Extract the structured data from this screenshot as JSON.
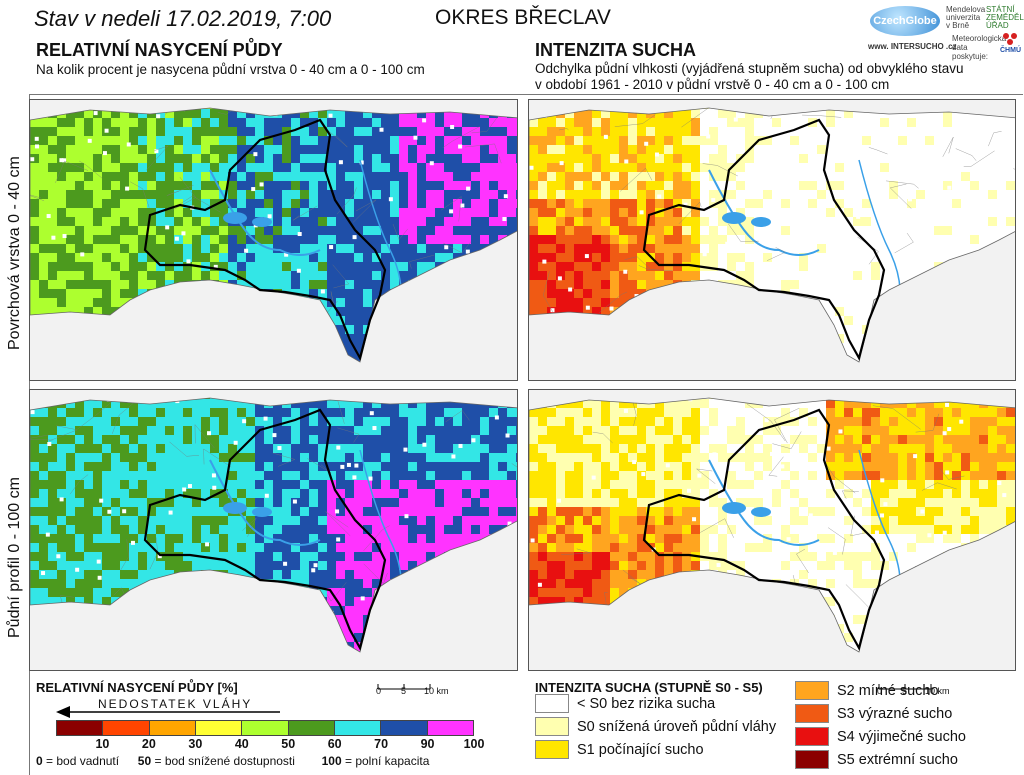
{
  "header": {
    "date_text": "Stav v nedeli 17.02.2019, 7:00",
    "district": "OKRES BŘECLAV"
  },
  "logos": {
    "czechglobe": "CzechGlobe",
    "mendel": "Mendelova univerzita v Brně",
    "szu": "STÁTNÍ ZEMĚDĚLSKÝ ÚŘAD",
    "intersucho": "www. INTERSUCHO .cz",
    "meteo_label": "Meteorologická data poskytuje:",
    "chmu": "ČHMÚ"
  },
  "left_section": {
    "title": "RELATIVNÍ NASYCENÍ PŮDY",
    "subtitle": "Na kolik procent je nasycena půdní vrstva 0 - 40 cm a 0 - 100 cm"
  },
  "right_section": {
    "title": "INTENZITA SUCHA",
    "subtitle_line1": "Odchylka půdní vlhkosti (vyjádřená stupněm sucha) od obvyklého stavu",
    "subtitle_line2": "v období 1961 - 2010 v půdní vrstvě 0 - 40 cm a 0 - 100 cm"
  },
  "row_labels": {
    "top": "Povrchová vrstva 0 - 40 cm",
    "bottom": "Půdní profil 0 - 100 cm"
  },
  "saturation_legend": {
    "title": "RELATIVNÍ NASYCENÍ PŮDY [%]",
    "arrow_label": "NEDOSTATEK VLÁHY",
    "colors": [
      "#8b0000",
      "#ff4500",
      "#ffa500",
      "#ffff33",
      "#adff2f",
      "#4c9a1e",
      "#33e6e6",
      "#1f4fa8",
      "#ff33ff"
    ],
    "ticks": [
      "10",
      "20",
      "30",
      "40",
      "50",
      "60",
      "70",
      "90",
      "100"
    ],
    "note_zero_num": "0",
    "note_zero_text": " = bod vadnutí",
    "note_fifty_num": "50",
    "note_fifty_text": " = bod snížené dostupnosti",
    "note_hundred_num": "100",
    "note_hundred_text": " = polní kapacita"
  },
  "drought_legend": {
    "title": "INTENZITA SUCHA (STUPNĚ S0 - S5)",
    "items": [
      {
        "label": "< S0 bez rizika sucha",
        "color": "#ffffff"
      },
      {
        "label": "S0 snížená úroveň půdní vláhy",
        "color": "#ffffb0"
      },
      {
        "label": "S1 počínající sucho",
        "color": "#ffe600"
      },
      {
        "label": "S2 mírné sucho",
        "color": "#ffa51f"
      },
      {
        "label": "S3 výrazné sucho",
        "color": "#f05a14"
      },
      {
        "label": "S4 výjimečné sucho",
        "color": "#e81010"
      },
      {
        "label": "S5 extrémní sucho",
        "color": "#8b0000"
      }
    ]
  },
  "scale_bar": {
    "labels": [
      "0",
      "5",
      "10 km"
    ]
  },
  "maps": {
    "saturation_top": {
      "colors": [
        "#4c9a1e",
        "#adff2f",
        "#33e6e6",
        "#1f4fa8",
        "#ff33ff"
      ]
    },
    "saturation_bottom": {
      "colors": [
        "#4c9a1e",
        "#33e6e6",
        "#1f4fa8",
        "#ff33ff"
      ]
    },
    "drought_top": {
      "colors": [
        "#ffffff",
        "#ffffb0",
        "#ffe600",
        "#ffa51f",
        "#f05a14",
        "#e81010"
      ]
    },
    "drought_bottom": {
      "colors": [
        "#ffffff",
        "#ffffb0",
        "#ffe600",
        "#ffa51f",
        "#f05a14",
        "#e81010"
      ]
    }
  }
}
